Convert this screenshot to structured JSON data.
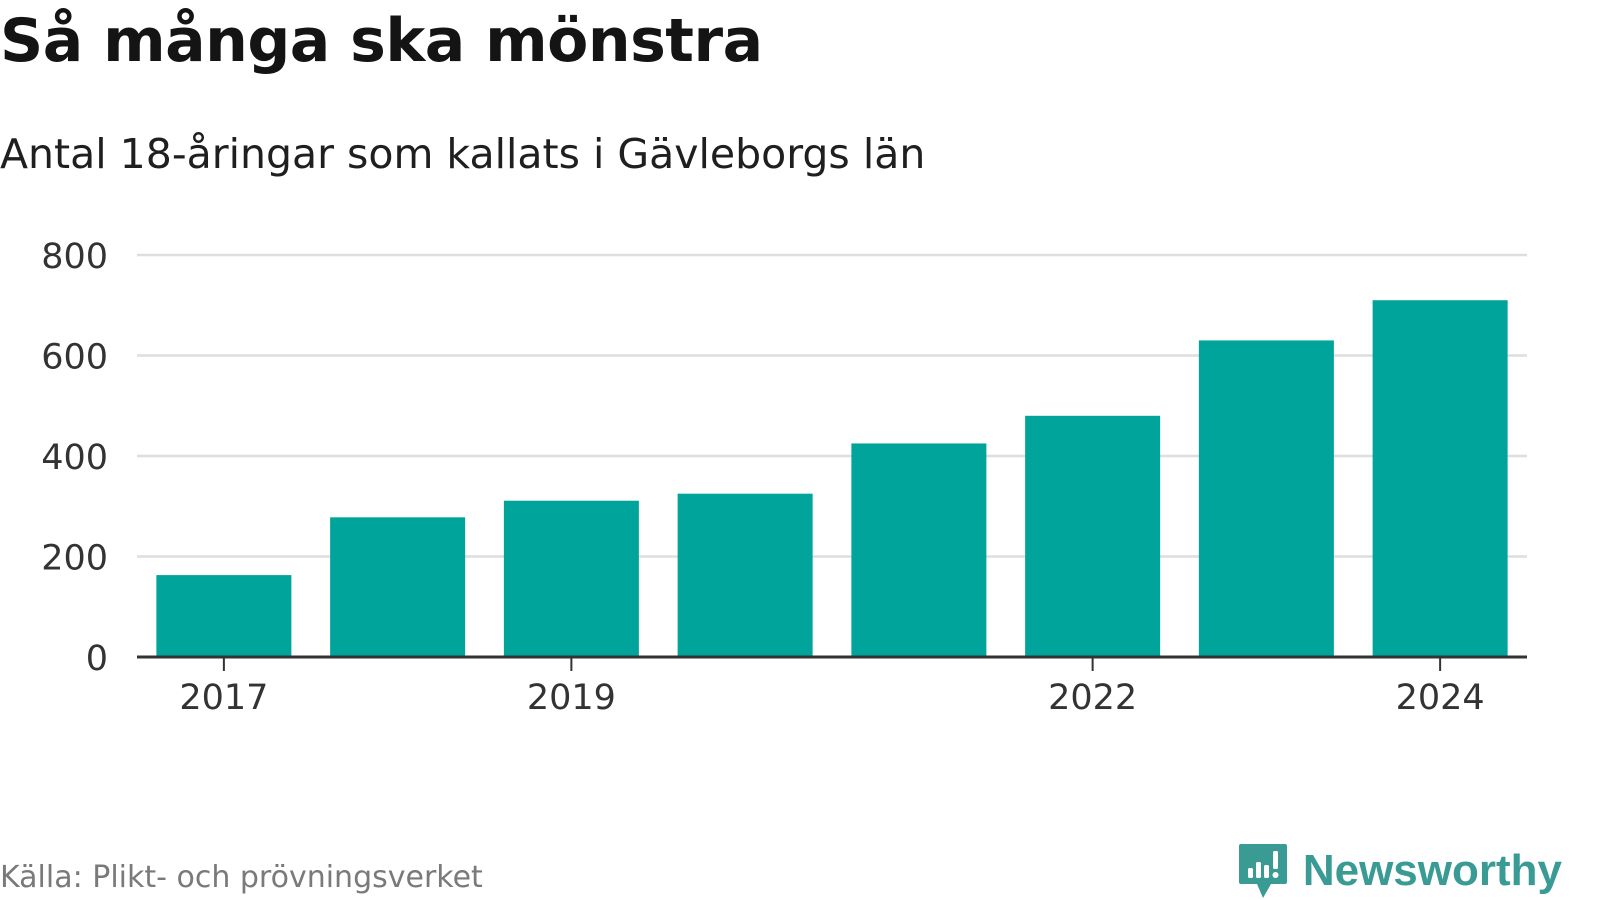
{
  "header": {
    "title": "Så många ska mönstra",
    "subtitle": "Antal 18-åringar som kallats i Gävleborgs län"
  },
  "footer": {
    "source": "Källa: Plikt- och prövningsverket",
    "brand": "Newsworthy",
    "brand_icon": "newsworthy-logo-icon"
  },
  "colors": {
    "bar": "#00a49a",
    "grid": "#dedede",
    "axis": "#333333",
    "brand": "#3a9b95"
  },
  "chart_data": {
    "type": "bar",
    "title": "Så många ska mönstra",
    "subtitle": "Antal 18-åringar som kallats i Gävleborgs län",
    "categories": [
      "2017",
      "2018",
      "2019",
      "2020",
      "2021",
      "2022",
      "2023",
      "2024"
    ],
    "tick_labels": [
      "2017",
      "2019",
      "2022",
      "2024"
    ],
    "values": [
      163,
      278,
      311,
      325,
      425,
      480,
      630,
      710
    ],
    "ylim": [
      0,
      800
    ],
    "yticks": [
      0,
      200,
      400,
      600,
      800
    ],
    "xlabel": "",
    "ylabel": "",
    "grid": true,
    "legend": "none"
  }
}
